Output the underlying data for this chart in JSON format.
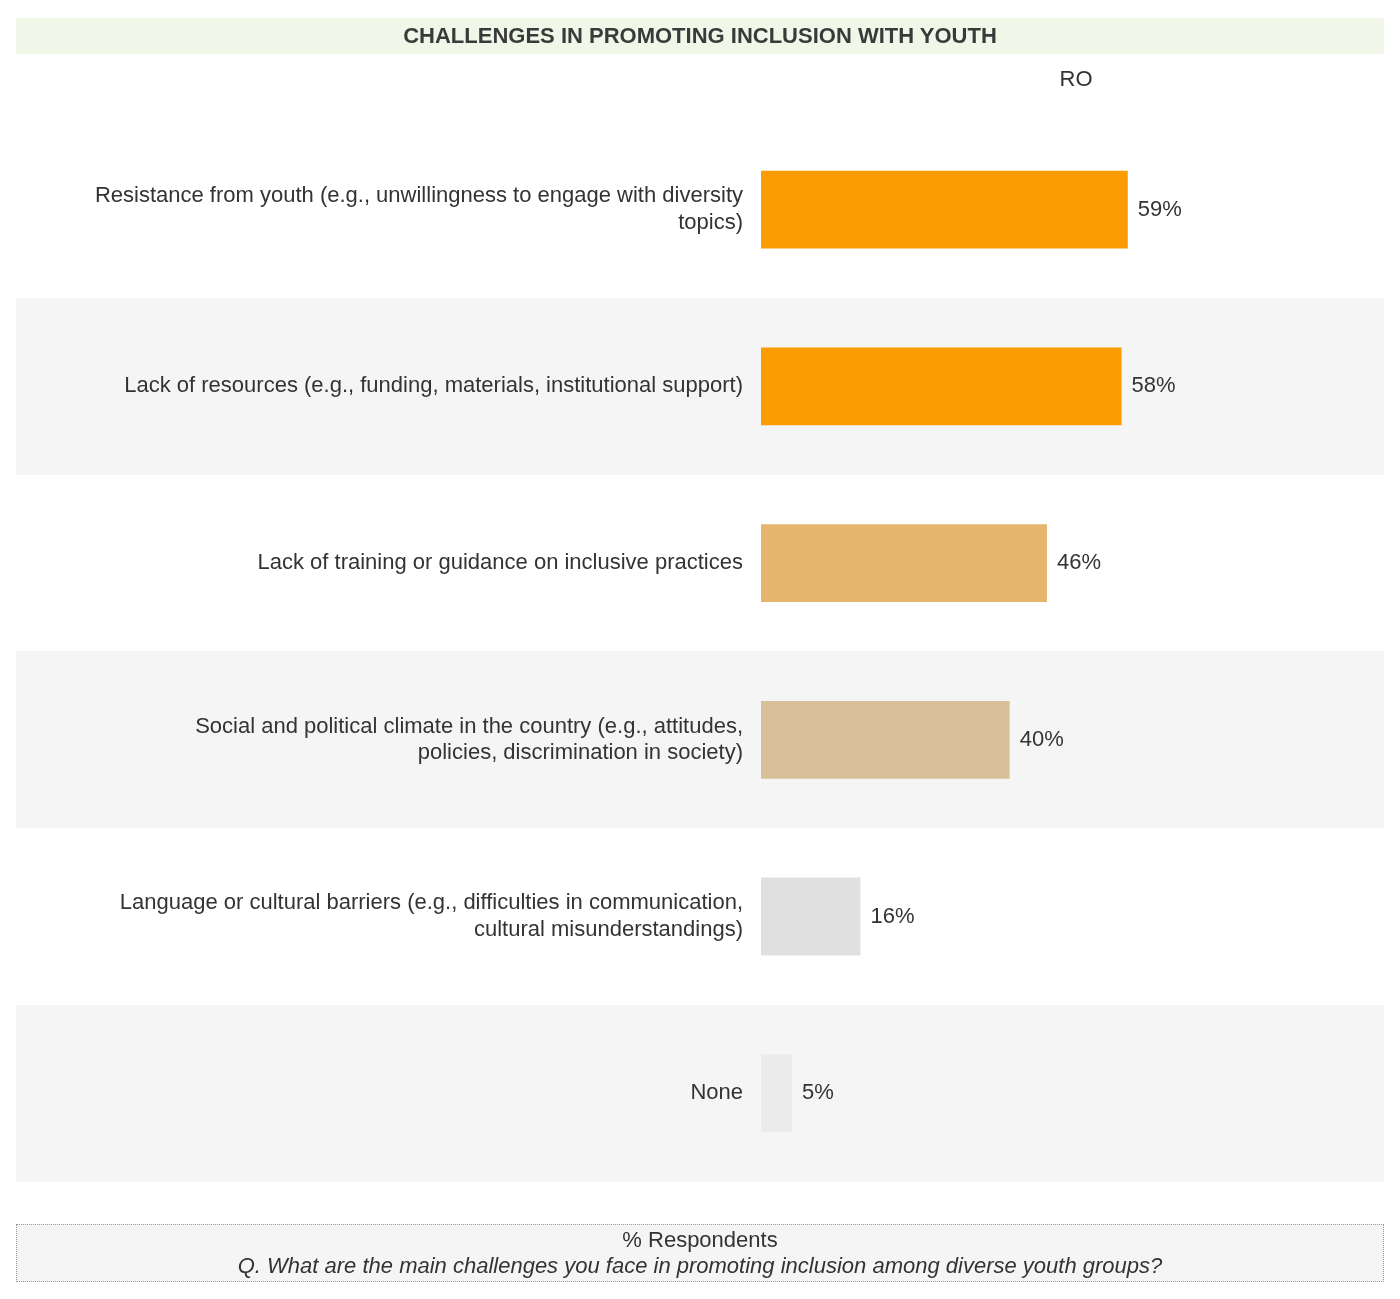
{
  "chart_data": {
    "type": "bar",
    "orientation": "horizontal",
    "title": "CHALLENGES IN PROMOTING INCLUSION WITH YOUTH",
    "subtitle": "RO",
    "categories": [
      "Resistance from youth (e.g., unwillingness to engage with diversity topics)",
      "Lack of resources (e.g., funding, materials, institutional support)",
      "Lack of training or guidance on inclusive practices",
      "Social and political climate in the country (e.g., attitudes, policies, discrimination in society)",
      "Language or cultural barriers (e.g., difficulties in communication, cultural misunderstandings)",
      "None"
    ],
    "values": [
      59,
      58,
      46,
      40,
      16,
      5
    ],
    "colors": [
      "#fb9c04",
      "#fb9c04",
      "#e5b56e",
      "#d9c09a",
      "#e0e0e0",
      "#ebebeb"
    ],
    "value_labels": [
      "59%",
      "58%",
      "46%",
      "40%",
      "16%",
      "5%"
    ],
    "tick_labels": "y",
    "grid": false,
    "legend": false,
    "annotations": [
      "% Respondents",
      "Q. What are the main challenges you face in promoting inclusion among diverse youth groups?"
    ]
  }
}
